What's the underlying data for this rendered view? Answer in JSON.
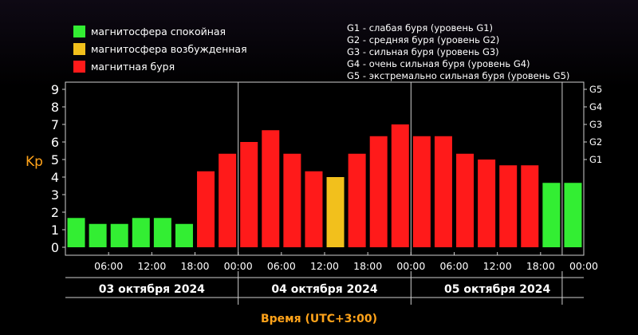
{
  "legend_left": [
    {
      "label": "магнитосфера спокойная",
      "color": "#33ee33"
    },
    {
      "label": "магнитосфера возбужденная",
      "color": "#f2c01c"
    },
    {
      "label": "магнитная буря",
      "color": "#ff1a1a"
    }
  ],
  "legend_right": [
    "G1 - слабая буря (уровень G1)",
    "G2 - средняя буря (уровень G2)",
    "G3 - сильная буря (уровень G3)",
    "G4 - очень сильная буря (уровень G4)",
    "G5 - экстремально сильная буря (уровень G5)"
  ],
  "chart_data": {
    "type": "bar",
    "ylabel": "Kp",
    "xlabel": "Время (UTC+3:00)",
    "ylim": [
      0,
      9
    ],
    "y_ticks": [
      "0",
      "1",
      "2",
      "3",
      "4",
      "5",
      "6",
      "7",
      "8",
      "9"
    ],
    "g_levels": [
      {
        "label": "G1",
        "kp": 5
      },
      {
        "label": "G2",
        "kp": 6
      },
      {
        "label": "G3",
        "kp": 7
      },
      {
        "label": "G4",
        "kp": 8
      },
      {
        "label": "G5",
        "kp": 9
      }
    ],
    "x_tick_labels": [
      "06:00",
      "12:00",
      "18:00",
      "00:00",
      "06:00",
      "12:00",
      "18:00",
      "00:00",
      "06:00",
      "12:00",
      "18:00",
      "00:00"
    ],
    "days": [
      "03 октября 2024",
      "04 октября 2024",
      "05 октября 2024"
    ],
    "values": [
      1.67,
      1.33,
      1.33,
      1.67,
      1.67,
      1.33,
      4.33,
      5.33,
      6.0,
      6.67,
      5.33,
      4.33,
      4.0,
      5.33,
      6.33,
      7.0,
      6.33,
      6.33,
      5.33,
      5.0,
      4.67,
      4.67,
      3.67,
      3.67
    ],
    "colors": [
      "#33ee33",
      "#33ee33",
      "#33ee33",
      "#33ee33",
      "#33ee33",
      "#33ee33",
      "#ff1a1a",
      "#ff1a1a",
      "#ff1a1a",
      "#ff1a1a",
      "#ff1a1a",
      "#ff1a1a",
      "#f2c01c",
      "#ff1a1a",
      "#ff1a1a",
      "#ff1a1a",
      "#ff1a1a",
      "#ff1a1a",
      "#ff1a1a",
      "#ff1a1a",
      "#ff1a1a",
      "#ff1a1a",
      "#33ee33",
      "#33ee33"
    ],
    "grid": false
  }
}
